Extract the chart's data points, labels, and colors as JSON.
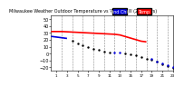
{
  "title": "Milwaukee Weather Outdoor Temperature vs Wind Chill (24 Hours)",
  "title_fontsize": 3.5,
  "bg_color": "#ffffff",
  "plot_bg": "#ffffff",
  "grid_color": "#888888",
  "legend_temp_color": "#ff0000",
  "legend_chill_color": "#0000dd",
  "temp_color": "#ff0000",
  "chill_color": "#0000dd",
  "dot_color": "#000000",
  "ylim_min": -25,
  "ylim_max": 55,
  "hours": [
    0,
    1,
    2,
    3,
    4,
    5,
    6,
    7,
    8,
    9,
    10,
    11,
    12,
    13,
    14,
    15,
    16,
    17,
    18,
    19,
    20,
    21,
    22,
    23
  ],
  "temp_values": [
    32,
    32,
    32,
    null,
    null,
    null,
    null,
    null,
    null,
    null,
    null,
    null,
    28,
    27,
    null,
    null,
    null,
    18,
    17,
    null,
    null,
    null,
    null,
    null
  ],
  "chill_values": [
    25,
    24,
    23,
    22,
    null,
    null,
    null,
    null,
    null,
    null,
    null,
    null,
    null,
    null,
    null,
    null,
    null,
    null,
    null,
    null,
    null,
    null,
    null,
    null
  ],
  "dot_values": [
    null,
    null,
    null,
    null,
    18,
    15,
    12,
    9,
    7,
    5,
    3,
    1,
    null,
    null,
    0,
    -1,
    -3,
    -5,
    -7,
    -9,
    -12,
    -15,
    -18,
    -21
  ],
  "dot2_values": [
    null,
    null,
    null,
    null,
    null,
    null,
    null,
    null,
    null,
    null,
    null,
    null,
    2,
    1,
    null,
    null,
    null,
    null,
    null,
    -8,
    -11,
    -14,
    -17,
    -20
  ],
  "ylabel": "",
  "ytick_fontsize": 3.5,
  "xtick_fontsize": 3.0,
  "legend_fontsize": 3.5
}
